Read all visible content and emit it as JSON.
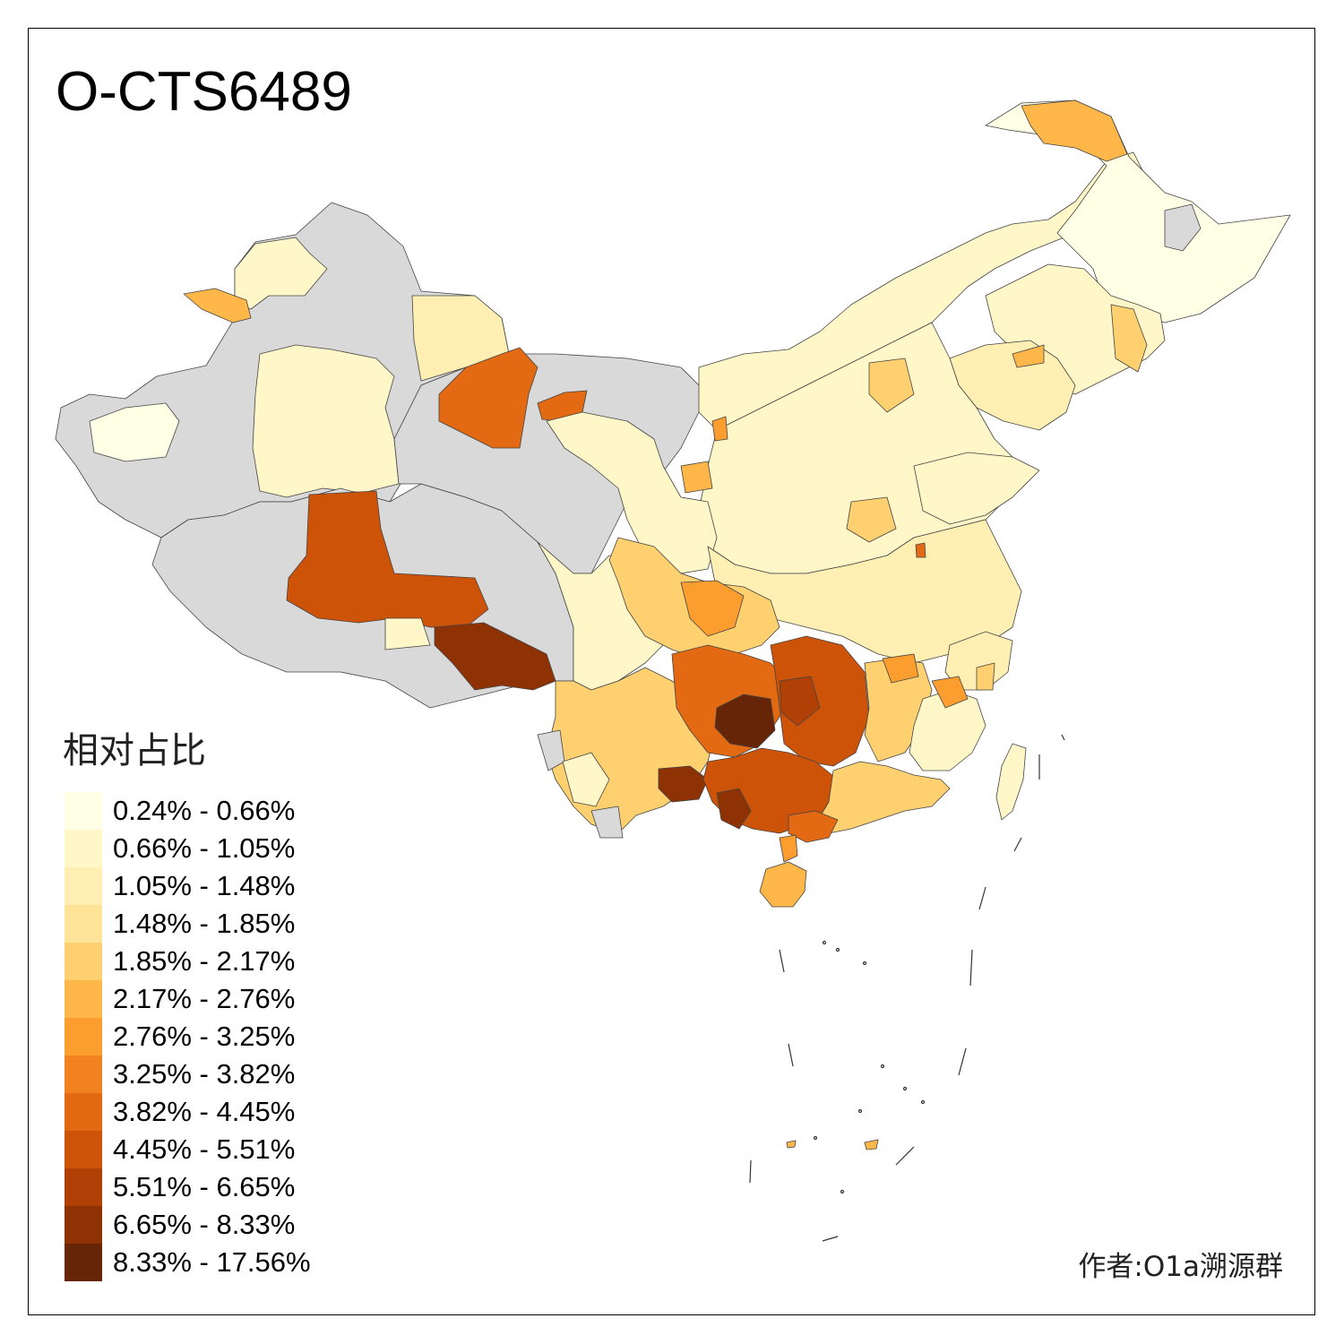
{
  "title": "O-CTS6489",
  "legend": {
    "title": "相对占比",
    "items": [
      {
        "label": "0.24% - 0.66%",
        "color": "#ffffe5"
      },
      {
        "label": "0.66% - 1.05%",
        "color": "#fff7c8"
      },
      {
        "label": "1.05% - 1.48%",
        "color": "#ffefb2"
      },
      {
        "label": "1.48% - 1.85%",
        "color": "#fee398"
      },
      {
        "label": "1.85% - 2.17%",
        "color": "#fed070"
      },
      {
        "label": "2.17% - 2.76%",
        "color": "#feb748"
      },
      {
        "label": "2.76% - 3.25%",
        "color": "#fb9d2f"
      },
      {
        "label": "3.25% - 3.82%",
        "color": "#f1821f"
      },
      {
        "label": "3.82% - 4.45%",
        "color": "#e36a12"
      },
      {
        "label": "4.45% - 5.51%",
        "color": "#cd5308"
      },
      {
        "label": "5.51% - 6.65%",
        "color": "#b04005"
      },
      {
        "label": "6.65% - 8.33%",
        "color": "#8e3204"
      },
      {
        "label": "8.33% - 17.56%",
        "color": "#662506"
      }
    ]
  },
  "no_data_color": "#d9d9d9",
  "author": "作者:O1a溯源群"
}
